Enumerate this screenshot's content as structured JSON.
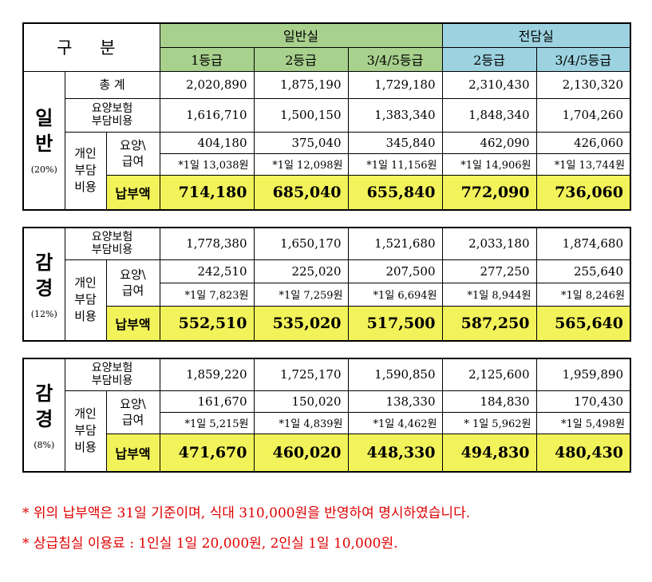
{
  "header": {
    "gubun": "구 분",
    "general_room": "일반실",
    "dedicated_room": "전담실",
    "grades": [
      "1등급",
      "2등급",
      "3/4/5등급",
      "2등급",
      "3/4/5등급"
    ]
  },
  "labels": {
    "total": "총        계",
    "insurance_line1": "요양보험",
    "insurance_line2": "부담비용",
    "personal_line1": "개인",
    "personal_line2": "부담",
    "personal_line3": "비용",
    "care_line1": "요양\\",
    "care_line2": "급여",
    "payment": "납부액"
  },
  "sections": [
    {
      "name_line1": "일",
      "name_line2": "반",
      "pct": "(20%)",
      "total": [
        "2,020,890",
        "1,875,190",
        "1,729,180",
        "2,310,430",
        "2,130,320"
      ],
      "insurance": [
        "1,616,710",
        "1,500,150",
        "1,383,340",
        "1,848,340",
        "1,704,260"
      ],
      "care": [
        "404,180",
        "375,040",
        "345,840",
        "462,090",
        "426,060"
      ],
      "daily": [
        "*1일 13,038원",
        "*1일 12,098원",
        "*1일 11,156원",
        "*1일 14,906원",
        "*1일 13,744원"
      ],
      "payment": [
        "714,180",
        "685,040",
        "655,840",
        "772,090",
        "736,060"
      ]
    },
    {
      "name_line1": "감",
      "name_line2": "경",
      "pct": "(12%)",
      "insurance": [
        "1,778,380",
        "1,650,170",
        "1,521,680",
        "2,033,180",
        "1,874,680"
      ],
      "care": [
        "242,510",
        "225,020",
        "207,500",
        "277,250",
        "255,640"
      ],
      "daily": [
        "*1일 7,823원",
        "*1일 7,259원",
        "*1일 6,694원",
        "*1일 8,944원",
        "*1일 8,246원"
      ],
      "payment": [
        "552,510",
        "535,020",
        "517,500",
        "587,250",
        "565,640"
      ]
    },
    {
      "name_line1": "감",
      "name_line2": "경",
      "pct": "(8%)",
      "insurance": [
        "1,859,220",
        "1,725,170",
        "1,590,850",
        "2,125,600",
        "1,959,890"
      ],
      "care": [
        "161,670",
        "150,020",
        "138,330",
        "184,830",
        "170,430"
      ],
      "daily": [
        "*1일 5,215원",
        "*1일 4,839원",
        "*1일 4,462원",
        "* 1일 5,962원",
        "*1일 5,498원"
      ],
      "payment": [
        "471,670",
        "460,020",
        "448,330",
        "494,830",
        "480,430"
      ]
    }
  ],
  "notes": [
    "* 위의 납부액은 31일 기준이며, 식대 310,000원을 반영하여 명시하였습니다.",
    "* 상급침실 이용료 : 1인실 1일 20,000원, 2인실 1일 10,000원."
  ]
}
